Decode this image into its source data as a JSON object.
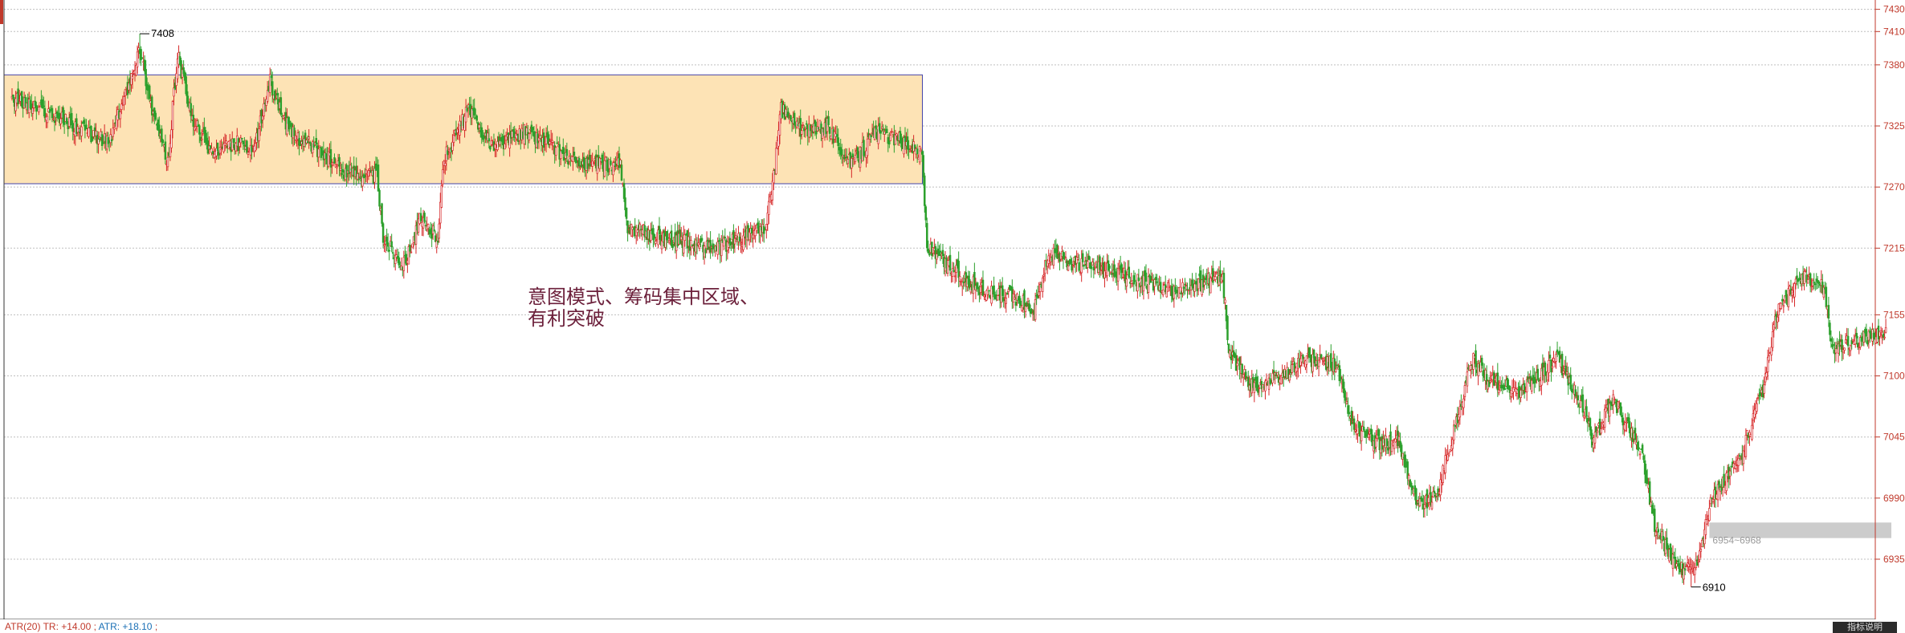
{
  "chart_data": {
    "type": "candlestick",
    "y_axis": {
      "ticks": [
        "7430",
        "7410",
        "7380",
        "7325",
        "7270",
        "7215",
        "7155",
        "7100",
        "7045",
        "6990",
        "6935"
      ],
      "range": [
        6900,
        7440
      ]
    },
    "annotations": {
      "high_label": "7408",
      "low_label": "6910",
      "text_line1": "意图模式、筹码集中区域、",
      "text_line2": "有利突破",
      "support_zone_label": "6954~6968"
    },
    "consolidation_box": {
      "y_low": 7273,
      "y_high": 7371,
      "color": "#fde3b5",
      "border": "#4444aa"
    },
    "support_zone": {
      "y_low": 6954,
      "y_high": 6968,
      "color": "#cccccc"
    },
    "up_color": "#d62728",
    "down_color": "#2ca02c",
    "anchors": [
      [
        0,
        7350
      ],
      [
        35,
        7335
      ],
      [
        60,
        7320
      ],
      [
        80,
        7310
      ],
      [
        95,
        7360
      ],
      [
        105,
        7395
      ],
      [
        115,
        7340
      ],
      [
        128,
        7290
      ],
      [
        136,
        7390
      ],
      [
        148,
        7330
      ],
      [
        165,
        7300
      ],
      [
        185,
        7310
      ],
      [
        198,
        7300
      ],
      [
        212,
        7365
      ],
      [
        228,
        7320
      ],
      [
        250,
        7305
      ],
      [
        270,
        7285
      ],
      [
        300,
        7280
      ],
      [
        305,
        7225
      ],
      [
        322,
        7200
      ],
      [
        335,
        7240
      ],
      [
        350,
        7225
      ],
      [
        355,
        7295
      ],
      [
        375,
        7340
      ],
      [
        395,
        7305
      ],
      [
        420,
        7320
      ],
      [
        440,
        7310
      ],
      [
        465,
        7290
      ],
      [
        500,
        7290
      ],
      [
        505,
        7235
      ],
      [
        530,
        7225
      ],
      [
        555,
        7220
      ],
      [
        580,
        7215
      ],
      [
        600,
        7225
      ],
      [
        620,
        7235
      ],
      [
        628,
        7300
      ],
      [
        632,
        7340
      ],
      [
        650,
        7320
      ],
      [
        670,
        7325
      ],
      [
        690,
        7290
      ],
      [
        710,
        7320
      ],
      [
        735,
        7310
      ],
      [
        748,
        7300
      ],
      [
        752,
        7215
      ],
      [
        775,
        7195
      ],
      [
        800,
        7175
      ],
      [
        825,
        7170
      ],
      [
        840,
        7160
      ],
      [
        852,
        7210
      ],
      [
        875,
        7200
      ],
      [
        900,
        7195
      ],
      [
        930,
        7185
      ],
      [
        955,
        7175
      ],
      [
        995,
        7190
      ],
      [
        1000,
        7120
      ],
      [
        1020,
        7090
      ],
      [
        1045,
        7100
      ],
      [
        1060,
        7115
      ],
      [
        1088,
        7110
      ],
      [
        1100,
        7060
      ],
      [
        1120,
        7040
      ],
      [
        1140,
        7040
      ],
      [
        1155,
        6985
      ],
      [
        1170,
        6990
      ],
      [
        1185,
        7050
      ],
      [
        1200,
        7115
      ],
      [
        1215,
        7095
      ],
      [
        1240,
        7085
      ],
      [
        1270,
        7115
      ],
      [
        1290,
        7075
      ],
      [
        1300,
        7040
      ],
      [
        1315,
        7080
      ],
      [
        1340,
        7030
      ],
      [
        1350,
        6965
      ],
      [
        1370,
        6925
      ],
      [
        1385,
        6930
      ],
      [
        1395,
        6985
      ],
      [
        1420,
        7025
      ],
      [
        1440,
        7090
      ],
      [
        1450,
        7155
      ],
      [
        1470,
        7190
      ],
      [
        1490,
        7180
      ],
      [
        1495,
        7125
      ],
      [
        1540,
        7140
      ]
    ]
  },
  "indicator_bar": {
    "prefix": "ATR(20) TR: +14.00",
    "atr": "ATR: +18.10"
  },
  "status_button": "指标说明"
}
